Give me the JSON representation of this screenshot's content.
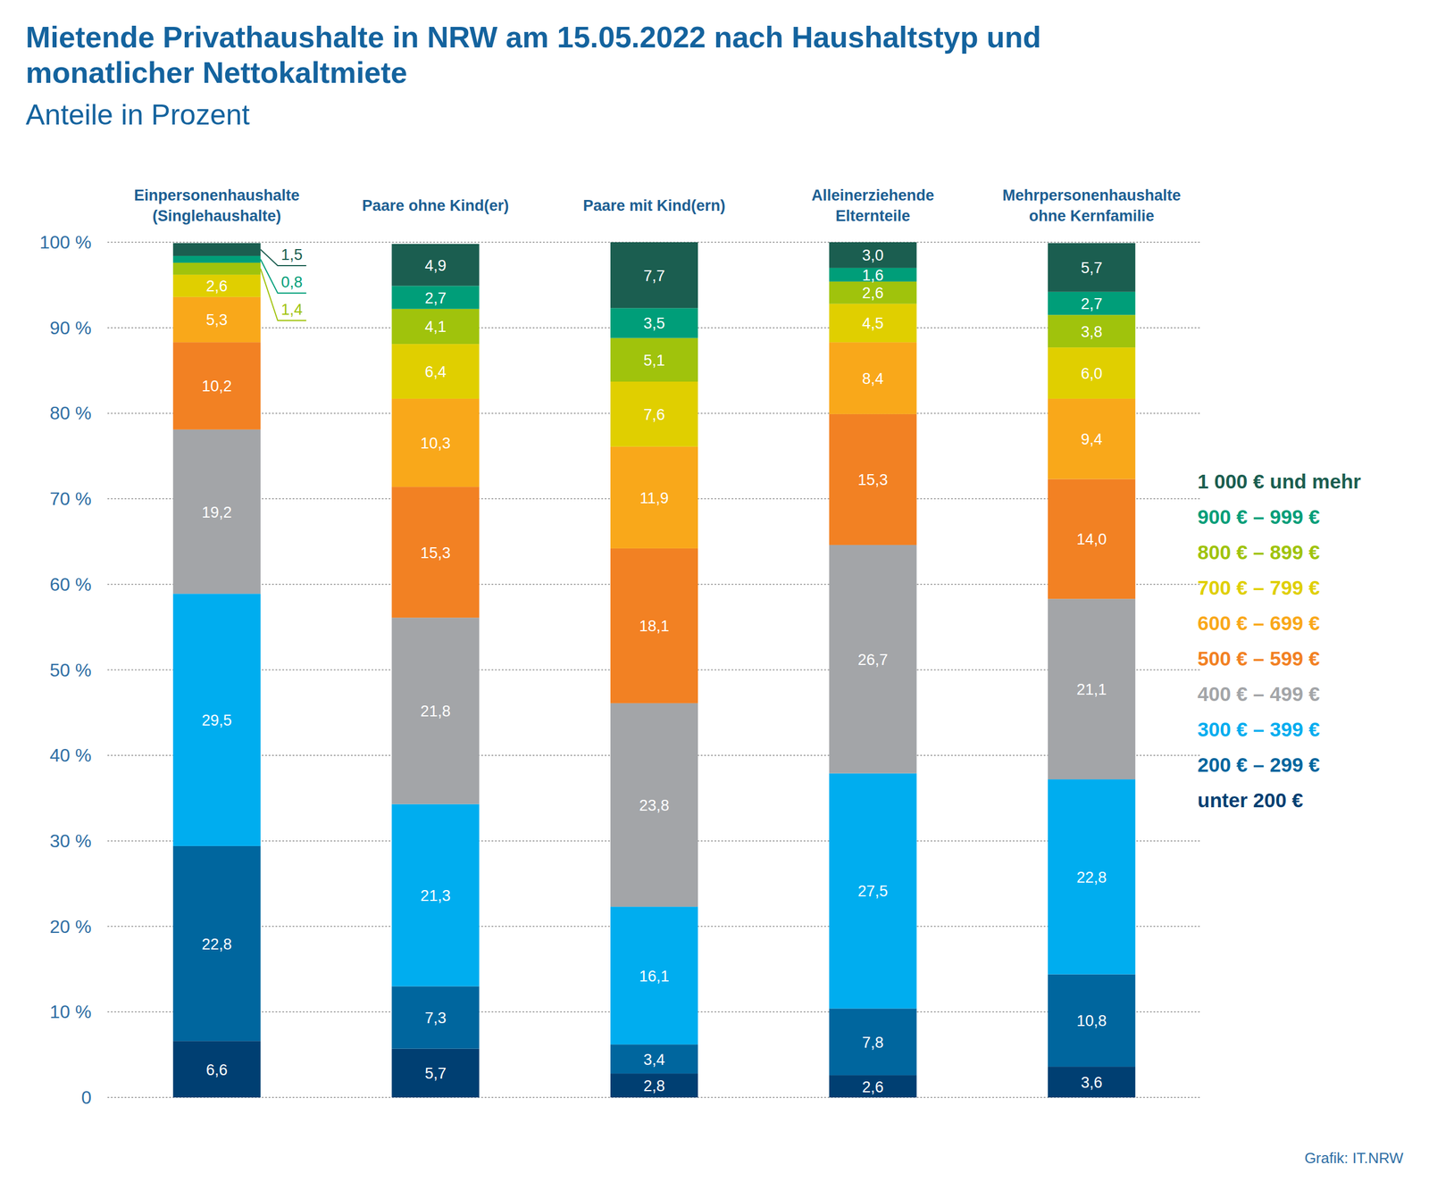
{
  "chart_data": {
    "type": "bar",
    "stacked": true,
    "data_labels": true,
    "grid": true,
    "legend": "right",
    "title": "Mietende Privathaushalte in NRW am 15.05.2022 nach Haushaltstyp und\nmonatlicher Nettokaltmiete",
    "subtitle": "Anteile in Prozent",
    "annotations": [
      "Grafik: IT.NRW"
    ],
    "categories": [
      "Einpersonenhaushalte\n(Singlehaushalte)",
      "Paare ohne Kind(er)",
      "Paare mit Kind(ern)",
      "Alleinerziehende\nElternteile",
      "Mehrpersonenhaushalte\nohne Kernfamilie"
    ],
    "ylim": [
      0,
      100
    ],
    "yticks": [
      0,
      {
        "value": 10,
        "label": "10 %"
      },
      {
        "value": 20,
        "label": "20 %"
      },
      {
        "value": 30,
        "label": "30 %"
      },
      {
        "value": 40,
        "label": "40 %"
      },
      {
        "value": 50,
        "label": "50 %"
      },
      {
        "value": 60,
        "label": "60 %"
      },
      {
        "value": 70,
        "label": "70 %"
      },
      {
        "value": 80,
        "label": "80 %"
      },
      {
        "value": 90,
        "label": "90 %"
      },
      {
        "value": 100,
        "label": "100 %"
      }
    ],
    "series": [
      {
        "name": "unter 200 €",
        "color": "#003f72",
        "values": [
          6.6,
          5.7,
          2.8,
          2.6,
          3.6
        ],
        "value_labels": [
          "6,6",
          "5,7",
          "2,8",
          "2,6",
          "3,6"
        ]
      },
      {
        "name": "200 € – 299 €",
        "color": "#00669e",
        "values": [
          22.8,
          7.3,
          3.4,
          7.8,
          10.8
        ],
        "value_labels": [
          "22,8",
          "7,3",
          "3,4",
          "7,8",
          "10,8"
        ]
      },
      {
        "name": "300 € – 399 €",
        "color": "#00adef",
        "values": [
          29.5,
          21.3,
          16.1,
          27.5,
          22.8
        ],
        "value_labels": [
          "29,5",
          "21,3",
          "16,1",
          "27,5",
          "22,8"
        ]
      },
      {
        "name": "400 € – 499 €",
        "color": "#a3a5a8",
        "values": [
          19.2,
          21.8,
          23.8,
          26.7,
          21.1
        ],
        "value_labels": [
          "19,2",
          "21,8",
          "23,8",
          "26,7",
          "21,1"
        ]
      },
      {
        "name": "500 € – 599 €",
        "color": "#f28123",
        "values": [
          10.2,
          15.3,
          18.1,
          15.3,
          14.0
        ],
        "value_labels": [
          "10,2",
          "15,3",
          "18,1",
          "15,3",
          "14,0"
        ]
      },
      {
        "name": "600 € – 699 €",
        "color": "#f9a81a",
        "values": [
          5.3,
          10.3,
          11.9,
          8.4,
          9.4
        ],
        "value_labels": [
          "5,3",
          "10,3",
          "11,9",
          "8,4",
          "9,4"
        ]
      },
      {
        "name": "700 € – 799 €",
        "color": "#e0cf00",
        "values": [
          2.6,
          6.4,
          7.6,
          4.5,
          6.0
        ],
        "value_labels": [
          "2,6",
          "6,4",
          "7,6",
          "4,5",
          "6,0"
        ]
      },
      {
        "name": "800 € – 899 €",
        "color": "#a0c30c",
        "values": [
          1.4,
          4.1,
          5.1,
          2.6,
          3.8
        ],
        "value_labels": [
          "1,4",
          "4,1",
          "5,1",
          "2,6",
          "3,8"
        ]
      },
      {
        "name": "900 € – 999 €",
        "color": "#009e79",
        "values": [
          0.8,
          2.7,
          3.5,
          1.6,
          2.7
        ],
        "value_labels": [
          "0,8",
          "2,7",
          "3,5",
          "1,6",
          "2,7"
        ]
      },
      {
        "name": "1 000 € und mehr",
        "color": "#1b5e50",
        "values": [
          1.5,
          4.9,
          7.7,
          3.0,
          5.7
        ],
        "value_labels": [
          "1,5",
          "4,9",
          "7,7",
          "3,0",
          "5,7"
        ]
      }
    ]
  }
}
